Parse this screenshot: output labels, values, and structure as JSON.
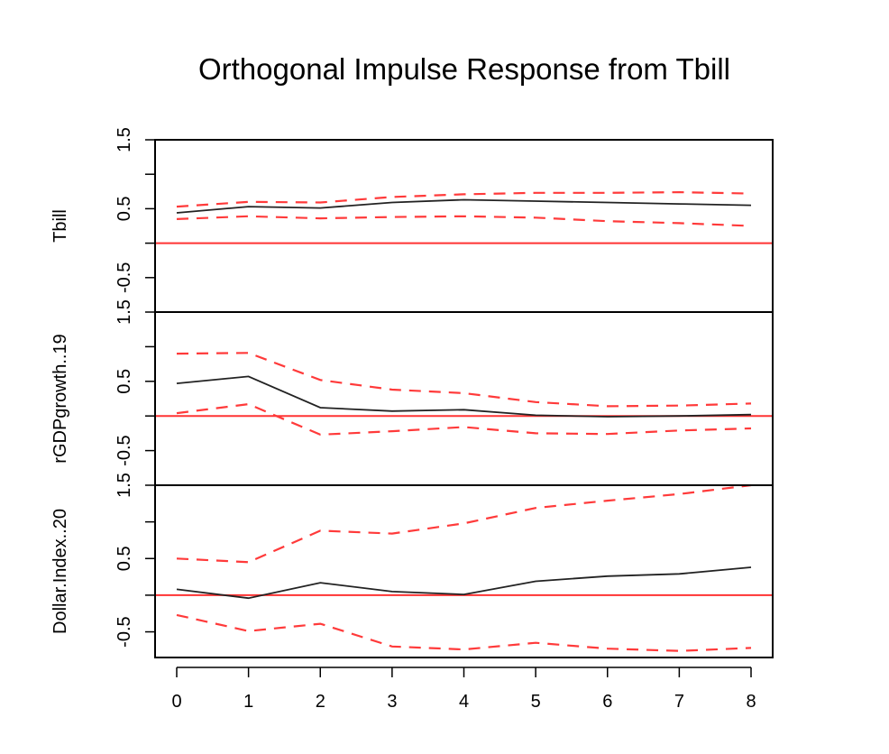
{
  "chart_data": {
    "type": "line",
    "title": "Orthogonal Impulse Response from Tbill",
    "x": [
      0,
      1,
      2,
      3,
      4,
      5,
      6,
      7,
      8
    ],
    "x_ticks": [
      "0",
      "1",
      "2",
      "3",
      "4",
      "5",
      "6",
      "7",
      "8"
    ],
    "panels": [
      {
        "ylabel": "Tbill",
        "ylim": [
          -1.0,
          1.5
        ],
        "y_ticks": [
          "-0.5",
          "0.5",
          "1.5"
        ],
        "reference_line": 0,
        "series": [
          {
            "role": "response",
            "color": "#000000",
            "style": "solid",
            "values": [
              0.44,
              0.53,
              0.51,
              0.59,
              0.63,
              0.61,
              0.59,
              0.57,
              0.55
            ]
          },
          {
            "role": "upper",
            "color": "#ff0000",
            "style": "dashed",
            "values": [
              0.53,
              0.6,
              0.59,
              0.67,
              0.71,
              0.73,
              0.73,
              0.74,
              0.72
            ]
          },
          {
            "role": "lower",
            "color": "#ff0000",
            "style": "dashed",
            "values": [
              0.35,
              0.39,
              0.36,
              0.38,
              0.39,
              0.37,
              0.32,
              0.29,
              0.25
            ]
          }
        ]
      },
      {
        "ylabel": "rGDPgrowth..19",
        "ylim": [
          -1.0,
          1.5
        ],
        "y_ticks": [
          "-0.5",
          "0.5",
          "1.5"
        ],
        "reference_line": 0,
        "series": [
          {
            "role": "response",
            "color": "#000000",
            "style": "solid",
            "values": [
              0.47,
              0.57,
              0.12,
              0.07,
              0.09,
              0.01,
              -0.01,
              0.0,
              0.02
            ]
          },
          {
            "role": "upper",
            "color": "#ff0000",
            "style": "dashed",
            "values": [
              0.9,
              0.91,
              0.52,
              0.38,
              0.33,
              0.2,
              0.14,
              0.15,
              0.18
            ]
          },
          {
            "role": "lower",
            "color": "#ff0000",
            "style": "dashed",
            "values": [
              0.04,
              0.17,
              -0.27,
              -0.22,
              -0.16,
              -0.25,
              -0.26,
              -0.21,
              -0.18
            ]
          }
        ]
      },
      {
        "ylabel": "Dollar.Index..20",
        "ylim": [
          -0.85,
          1.5
        ],
        "y_ticks": [
          "-0.5",
          "0.5",
          "1.5"
        ],
        "reference_line": 0,
        "series": [
          {
            "role": "response",
            "color": "#000000",
            "style": "solid",
            "values": [
              0.08,
              -0.04,
              0.17,
              0.05,
              0.01,
              0.19,
              0.26,
              0.29,
              0.38
            ]
          },
          {
            "role": "upper",
            "color": "#ff0000",
            "style": "dashed",
            "values": [
              0.5,
              0.45,
              0.88,
              0.84,
              0.98,
              1.19,
              1.29,
              1.38,
              1.5
            ]
          },
          {
            "role": "lower",
            "color": "#ff0000",
            "style": "dashed",
            "values": [
              -0.27,
              -0.49,
              -0.39,
              -0.7,
              -0.74,
              -0.65,
              -0.73,
              -0.76,
              -0.72
            ]
          }
        ]
      }
    ]
  }
}
